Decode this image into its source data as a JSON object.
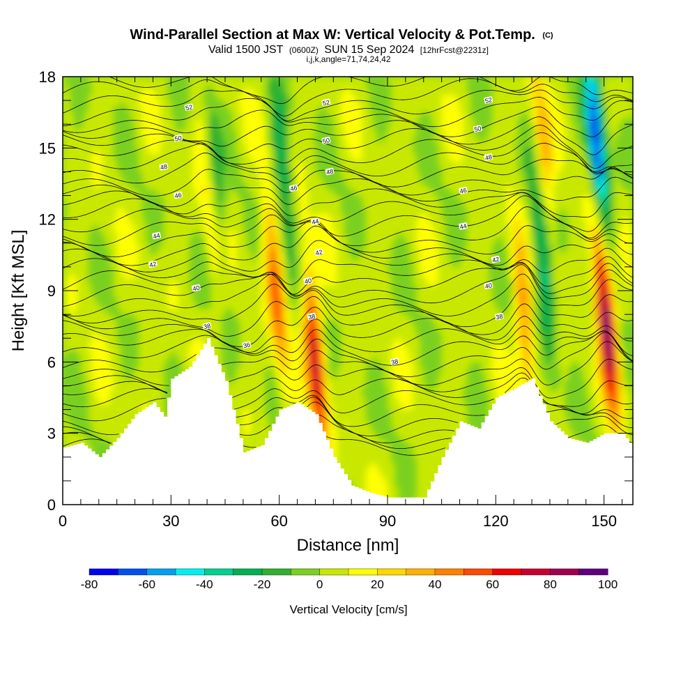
{
  "title": {
    "main": "Wind-Parallel Section at Max W: Vertical Velocity & Pot.Temp.",
    "copyright": "(C)",
    "valid_prefix": "Valid 1500 JST",
    "valid_z": "(0600Z)",
    "valid_date": "SUN 15 Sep 2024",
    "forecast": "[12hrFcst@2231z]",
    "params": "i,j,k,angle=71,74,24,42"
  },
  "colorbar": {
    "title": "Vertical Velocity [cm/s]",
    "levels": [
      -80,
      -70,
      -60,
      -50,
      -40,
      -30,
      -20,
      -10,
      0,
      10,
      20,
      30,
      40,
      50,
      60,
      70,
      80,
      90,
      100
    ],
    "tick_labels": [
      "-80",
      "-60",
      "-40",
      "-20",
      "0",
      "20",
      "40",
      "60",
      "80",
      "100"
    ],
    "colors": [
      "#0000f0",
      "#0050f0",
      "#00a0f0",
      "#00f0f0",
      "#00d090",
      "#00b050",
      "#30b030",
      "#7ad020",
      "#c8e800",
      "#ffff00",
      "#ffd800",
      "#ffb000",
      "#ff8000",
      "#ff4800",
      "#f00000",
      "#c80030",
      "#a00050",
      "#600080"
    ]
  },
  "chart_data": {
    "type": "heatmap",
    "title": "Wind-Parallel Section at Max W: Vertical Velocity & Pot.Temp.",
    "xlabel": "Distance [nm]",
    "ylabel": "Height [Kft MSL]",
    "xlim": [
      0,
      158
    ],
    "ylim": [
      0,
      18
    ],
    "x_ticks": [
      0,
      30,
      60,
      90,
      120,
      150
    ],
    "y_ticks": [
      0,
      3,
      6,
      9,
      12,
      15,
      18
    ],
    "x_tick_labels": [
      "0",
      "30",
      "60",
      "90",
      "120",
      "150"
    ],
    "y_tick_labels": [
      "0",
      "3",
      "6",
      "9",
      "12",
      "15",
      "18"
    ],
    "fill_variable": "Vertical Velocity [cm/s]",
    "contour_variable": "Potential Temperature",
    "terrain_profile": {
      "x": [
        0,
        5,
        10,
        15,
        20,
        25,
        28,
        30,
        35,
        40,
        45,
        50,
        55,
        60,
        65,
        70,
        75,
        80,
        85,
        90,
        95,
        100,
        105,
        110,
        115,
        120,
        125,
        130,
        135,
        140,
        145,
        150,
        155,
        158
      ],
      "height": [
        2.4,
        2.6,
        2.0,
        2.8,
        3.8,
        4.3,
        3.7,
        5.3,
        5.8,
        7.0,
        5.2,
        2.2,
        2.5,
        4.0,
        4.3,
        3.8,
        2.0,
        0.8,
        0.5,
        0.3,
        0.3,
        0.3,
        2.0,
        3.5,
        3.2,
        4.5,
        4.9,
        5.3,
        3.5,
        2.8,
        2.6,
        3.0,
        3.0,
        2.4
      ]
    },
    "updrafts": [
      {
        "x": 59,
        "z": 9.0,
        "w": 45
      },
      {
        "x": 70,
        "z": 6.0,
        "w": 70
      },
      {
        "x": 150.5,
        "z": 8.0,
        "w": 95
      },
      {
        "x": 41,
        "z": 13.0,
        "w": 30
      },
      {
        "x": 128,
        "z": 7.5,
        "w": 40
      },
      {
        "x": 133,
        "z": 15.0,
        "w": 30
      }
    ],
    "downdrafts": [
      {
        "x": 42,
        "z": 13.5,
        "w": -35
      },
      {
        "x": 61,
        "z": 14.0,
        "w": -30
      },
      {
        "x": 148,
        "z": 15.0,
        "w": -80
      },
      {
        "x": 133,
        "z": 10.0,
        "w": -40
      }
    ],
    "contour_labels": [
      {
        "text": "52",
        "x": 35,
        "y": 16.7
      },
      {
        "text": "50",
        "x": 32,
        "y": 15.4
      },
      {
        "text": "48",
        "x": 28,
        "y": 14.2
      },
      {
        "text": "46",
        "x": 32,
        "y": 13.0
      },
      {
        "text": "44",
        "x": 26,
        "y": 11.3
      },
      {
        "text": "42",
        "x": 25,
        "y": 10.1
      },
      {
        "text": "40",
        "x": 37,
        "y": 9.1
      },
      {
        "text": "38",
        "x": 40,
        "y": 7.5
      },
      {
        "text": "36",
        "x": 51,
        "y": 6.7
      },
      {
        "text": "52",
        "x": 73,
        "y": 16.9
      },
      {
        "text": "50",
        "x": 73,
        "y": 15.3
      },
      {
        "text": "48",
        "x": 74,
        "y": 14.0
      },
      {
        "text": "46",
        "x": 64,
        "y": 13.3
      },
      {
        "text": "44",
        "x": 70,
        "y": 11.9
      },
      {
        "text": "42",
        "x": 71,
        "y": 10.6
      },
      {
        "text": "40",
        "x": 68,
        "y": 9.4
      },
      {
        "text": "38",
        "x": 69,
        "y": 7.9
      },
      {
        "text": "38",
        "x": 92,
        "y": 6.0
      },
      {
        "text": "52",
        "x": 118,
        "y": 17.0
      },
      {
        "text": "50",
        "x": 115,
        "y": 15.8
      },
      {
        "text": "48",
        "x": 118,
        "y": 14.6
      },
      {
        "text": "46",
        "x": 111,
        "y": 13.2
      },
      {
        "text": "44",
        "x": 111,
        "y": 11.7
      },
      {
        "text": "42",
        "x": 120,
        "y": 10.3
      },
      {
        "text": "40",
        "x": 118,
        "y": 9.2
      },
      {
        "text": "38",
        "x": 121,
        "y": 7.9
      }
    ]
  }
}
